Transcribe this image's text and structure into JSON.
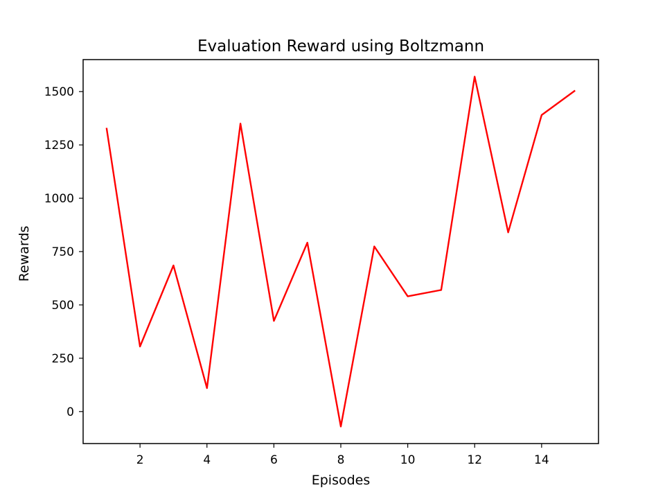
{
  "chart_data": {
    "type": "line",
    "title": "Evaluation Reward using Boltzmann",
    "xlabel": "Episodes",
    "ylabel": "Rewards",
    "xlim": [
      0.3,
      15.7
    ],
    "ylim": [
      -150,
      1650
    ],
    "xticks": [
      2,
      4,
      6,
      8,
      10,
      12,
      14
    ],
    "yticks": [
      0,
      250,
      500,
      750,
      1000,
      1250,
      1500
    ],
    "grid": false,
    "series": [
      {
        "color": "#ff0000",
        "x": [
          1,
          2,
          3,
          4,
          5,
          6,
          7,
          8,
          9,
          10,
          11,
          12,
          13,
          14,
          15
        ],
        "values": [
          1330,
          305,
          685,
          110,
          1350,
          425,
          792,
          -70,
          774,
          540,
          570,
          1570,
          840,
          1390,
          1505
        ]
      }
    ]
  }
}
